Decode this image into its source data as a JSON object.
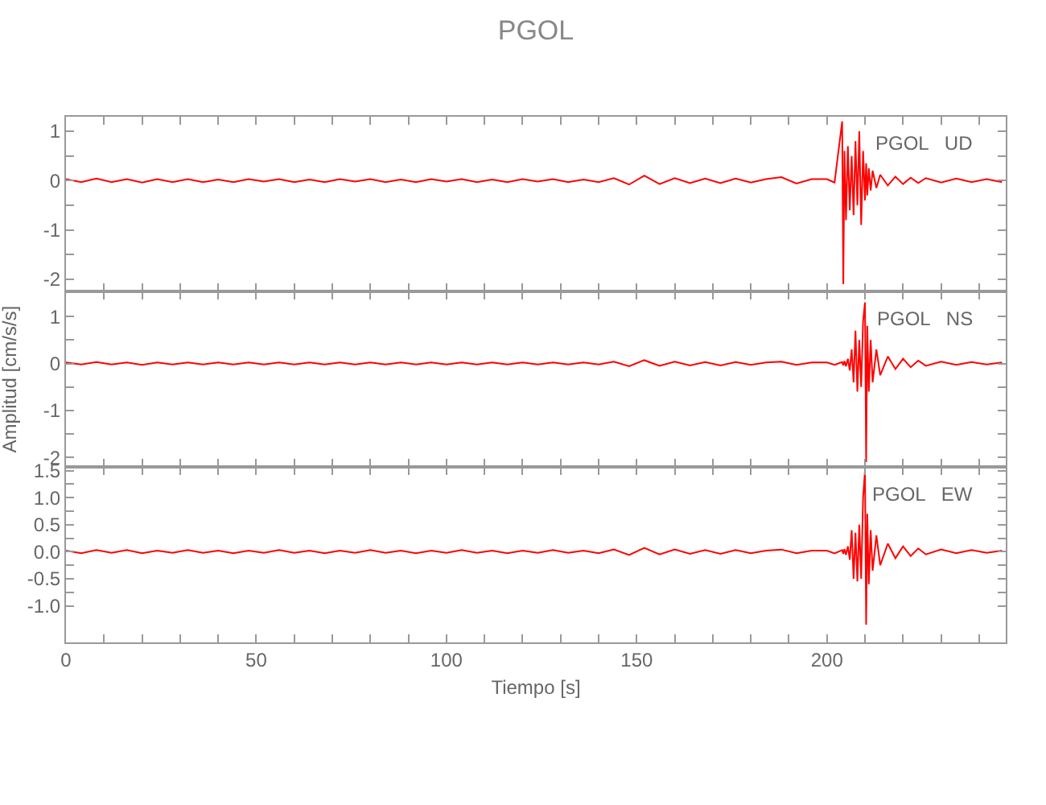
{
  "chart_data": [
    {
      "type": "line",
      "title": "PGOL",
      "annotations": [
        "PGOL   UD"
      ],
      "tick_labels": "y",
      "x": [
        0,
        4,
        8,
        12,
        16,
        20,
        24,
        28,
        32,
        36,
        40,
        44,
        48,
        52,
        56,
        60,
        64,
        68,
        72,
        76,
        80,
        84,
        88,
        92,
        96,
        100,
        104,
        108,
        112,
        116,
        120,
        124,
        128,
        132,
        136,
        140,
        144,
        148,
        152,
        156,
        160,
        164,
        168,
        172,
        176,
        180,
        184,
        188,
        192,
        196,
        200,
        202,
        204,
        204.3,
        204.6,
        205,
        205.5,
        206,
        206.5,
        207,
        207.5,
        208,
        208.5,
        209,
        209.5,
        210,
        210.3,
        210.6,
        211,
        211.5,
        212,
        213,
        214,
        216,
        218,
        220,
        222,
        224,
        226,
        230,
        234,
        238,
        242,
        246
      ],
      "series": [
        {
          "color": "#ff0000",
          "values": [
            0.03,
            -0.03,
            0.04,
            -0.03,
            0.03,
            -0.04,
            0.03,
            -0.03,
            0.03,
            -0.03,
            0.02,
            -0.03,
            0.03,
            -0.02,
            0.03,
            -0.03,
            0.02,
            -0.03,
            0.03,
            -0.02,
            0.03,
            -0.03,
            0.02,
            -0.03,
            0.03,
            -0.02,
            0.03,
            -0.03,
            0.02,
            -0.03,
            0.03,
            -0.02,
            0.03,
            -0.03,
            0.02,
            -0.03,
            0.05,
            -0.08,
            0.1,
            -0.07,
            0.05,
            -0.05,
            0.04,
            -0.05,
            0.04,
            -0.04,
            0.03,
            0.07,
            -0.06,
            0.03,
            0.03,
            -0.04,
            1.2,
            -2.1,
            0.6,
            -0.8,
            0.7,
            -0.6,
            0.5,
            -0.7,
            0.8,
            -0.5,
            1.0,
            -0.9,
            0.6,
            -0.4,
            0.35,
            -0.3,
            0.25,
            -0.2,
            0.2,
            -0.15,
            0.12,
            -0.1,
            0.08,
            -0.07,
            0.06,
            -0.05,
            0.05,
            -0.04,
            0.04,
            -0.03,
            0.03,
            -0.03
          ]
        }
      ],
      "xlim": [
        0,
        247
      ],
      "ylim": [
        -2.25,
        1.3
      ],
      "xticks": [
        0,
        {
          "value": 10,
          "label": null
        },
        {
          "value": 20,
          "label": null
        },
        {
          "value": 30,
          "label": null
        },
        {
          "value": 40,
          "label": null
        },
        50,
        {
          "value": 60,
          "label": null
        },
        {
          "value": 70,
          "label": null
        },
        {
          "value": 80,
          "label": null
        },
        {
          "value": 90,
          "label": null
        },
        100,
        {
          "value": 110,
          "label": null
        },
        {
          "value": 120,
          "label": null
        },
        {
          "value": 130,
          "label": null
        },
        {
          "value": 140,
          "label": null
        },
        150,
        {
          "value": 160,
          "label": null
        },
        {
          "value": 170,
          "label": null
        },
        {
          "value": 180,
          "label": null
        },
        {
          "value": 190,
          "label": null
        },
        200,
        {
          "value": 210,
          "label": null
        },
        {
          "value": 220,
          "label": null
        },
        {
          "value": 230,
          "label": null
        },
        {
          "value": 240,
          "label": null
        }
      ],
      "yticks": [
        -2,
        {
          "value": -1.5,
          "label": null
        },
        -1,
        {
          "value": -0.5,
          "label": null
        },
        0,
        {
          "value": 0.5,
          "label": null
        },
        1
      ]
    },
    {
      "type": "line",
      "ylabel": "Amplitud [cm/s/s]",
      "annotations": [
        "PGOL   NS"
      ],
      "tick_labels": "y",
      "x": [
        0,
        4,
        8,
        12,
        16,
        20,
        24,
        28,
        32,
        36,
        40,
        44,
        48,
        52,
        56,
        60,
        64,
        68,
        72,
        76,
        80,
        84,
        88,
        92,
        96,
        100,
        104,
        108,
        112,
        116,
        120,
        124,
        128,
        132,
        136,
        140,
        144,
        148,
        152,
        156,
        160,
        164,
        168,
        172,
        176,
        180,
        184,
        188,
        192,
        196,
        200,
        202,
        204,
        204.3,
        204.6,
        205,
        205.5,
        206,
        206.5,
        207,
        207.5,
        208,
        208.5,
        209,
        209.5,
        210,
        210.3,
        210.6,
        211,
        211.5,
        212,
        213,
        214,
        216,
        218,
        220,
        222,
        224,
        226,
        230,
        234,
        238,
        242,
        246
      ],
      "series": [
        {
          "color": "#ff0000",
          "values": [
            0.02,
            -0.02,
            0.03,
            -0.02,
            0.02,
            -0.03,
            0.02,
            -0.02,
            0.02,
            -0.02,
            0.02,
            -0.02,
            0.02,
            -0.02,
            0.02,
            -0.02,
            0.02,
            -0.02,
            0.02,
            -0.02,
            0.02,
            -0.02,
            0.02,
            -0.02,
            0.02,
            -0.02,
            0.02,
            -0.02,
            0.02,
            -0.02,
            0.02,
            -0.02,
            0.02,
            -0.02,
            0.02,
            -0.02,
            0.04,
            -0.06,
            0.07,
            -0.05,
            0.04,
            -0.04,
            0.03,
            -0.04,
            0.03,
            -0.03,
            0.02,
            0.04,
            -0.03,
            0.02,
            0.02,
            -0.03,
            0.03,
            -0.04,
            0.05,
            -0.06,
            0.1,
            -0.15,
            0.3,
            -0.4,
            0.7,
            -0.6,
            0.5,
            -0.5,
            0.9,
            1.3,
            -2.1,
            0.8,
            -0.6,
            0.5,
            -0.4,
            0.3,
            -0.25,
            0.15,
            -0.12,
            0.1,
            -0.08,
            0.06,
            -0.05,
            0.04,
            -0.03,
            0.03,
            -0.02,
            0.02
          ]
        }
      ],
      "xlim": [
        0,
        247
      ],
      "ylim": [
        -2.2,
        1.53
      ],
      "xticks": [
        0,
        {
          "value": 10,
          "label": null
        },
        {
          "value": 20,
          "label": null
        },
        {
          "value": 30,
          "label": null
        },
        {
          "value": 40,
          "label": null
        },
        50,
        {
          "value": 60,
          "label": null
        },
        {
          "value": 70,
          "label": null
        },
        {
          "value": 80,
          "label": null
        },
        {
          "value": 90,
          "label": null
        },
        100,
        {
          "value": 110,
          "label": null
        },
        {
          "value": 120,
          "label": null
        },
        {
          "value": 130,
          "label": null
        },
        {
          "value": 140,
          "label": null
        },
        150,
        {
          "value": 160,
          "label": null
        },
        {
          "value": 170,
          "label": null
        },
        {
          "value": 180,
          "label": null
        },
        {
          "value": 190,
          "label": null
        },
        200,
        {
          "value": 210,
          "label": null
        },
        {
          "value": 220,
          "label": null
        },
        {
          "value": 230,
          "label": null
        },
        {
          "value": 240,
          "label": null
        }
      ],
      "yticks": [
        -2,
        {
          "value": -1.5,
          "label": null
        },
        -1,
        {
          "value": -0.5,
          "label": null
        },
        0,
        {
          "value": 0.5,
          "label": null
        },
        1
      ]
    },
    {
      "type": "line",
      "xlabel": "Tiempo [s]",
      "annotations": [
        "PGOL   EW"
      ],
      "x": [
        0,
        4,
        8,
        12,
        16,
        20,
        24,
        28,
        32,
        36,
        40,
        44,
        48,
        52,
        56,
        60,
        64,
        68,
        72,
        76,
        80,
        84,
        88,
        92,
        96,
        100,
        104,
        108,
        112,
        116,
        120,
        124,
        128,
        132,
        136,
        140,
        144,
        148,
        152,
        156,
        160,
        164,
        168,
        172,
        176,
        180,
        184,
        188,
        192,
        196,
        200,
        202,
        204,
        204.3,
        204.6,
        205,
        205.5,
        206,
        206.5,
        207,
        207.5,
        208,
        208.5,
        209,
        209.5,
        210,
        210.3,
        210.6,
        211,
        211.5,
        212,
        213,
        214,
        216,
        218,
        220,
        222,
        224,
        226,
        230,
        234,
        238,
        242,
        246
      ],
      "series": [
        {
          "color": "#ff0000",
          "values": [
            0.02,
            -0.03,
            0.03,
            -0.02,
            0.03,
            -0.03,
            0.02,
            -0.02,
            0.03,
            -0.02,
            0.02,
            -0.03,
            0.02,
            -0.02,
            0.03,
            -0.02,
            0.02,
            -0.03,
            0.02,
            -0.02,
            0.03,
            -0.02,
            0.02,
            -0.03,
            0.02,
            -0.02,
            0.03,
            -0.02,
            0.02,
            -0.03,
            0.02,
            -0.02,
            0.03,
            -0.02,
            0.02,
            -0.03,
            0.04,
            -0.06,
            0.07,
            -0.05,
            0.04,
            -0.04,
            0.03,
            -0.04,
            0.03,
            -0.03,
            0.02,
            0.04,
            -0.03,
            0.02,
            0.02,
            -0.03,
            0.03,
            -0.04,
            0.05,
            -0.06,
            0.1,
            -0.15,
            0.4,
            -0.5,
            0.35,
            -0.55,
            0.5,
            -0.5,
            1.0,
            1.5,
            -1.35,
            0.7,
            -0.6,
            0.4,
            -0.35,
            0.3,
            -0.25,
            0.15,
            -0.12,
            0.1,
            -0.08,
            0.06,
            -0.05,
            0.04,
            -0.03,
            0.03,
            -0.02,
            0.02
          ]
        }
      ],
      "xlim": [
        0,
        247
      ],
      "ylim": [
        -1.67,
        1.57
      ],
      "xticks": [
        0,
        {
          "value": 10,
          "label": null
        },
        {
          "value": 20,
          "label": null
        },
        {
          "value": 30,
          "label": null
        },
        {
          "value": 40,
          "label": null
        },
        50,
        {
          "value": 60,
          "label": null
        },
        {
          "value": 70,
          "label": null
        },
        {
          "value": 80,
          "label": null
        },
        {
          "value": 90,
          "label": null
        },
        100,
        {
          "value": 110,
          "label": null
        },
        {
          "value": 120,
          "label": null
        },
        {
          "value": 130,
          "label": null
        },
        {
          "value": 140,
          "label": null
        },
        150,
        {
          "value": 160,
          "label": null
        },
        {
          "value": 170,
          "label": null
        },
        {
          "value": 180,
          "label": null
        },
        {
          "value": 190,
          "label": null
        },
        200,
        {
          "value": 210,
          "label": null
        },
        {
          "value": 220,
          "label": null
        },
        {
          "value": 230,
          "label": null
        },
        {
          "value": 240,
          "label": null
        }
      ],
      "yticks": [
        {
          "value": -1.0,
          "label": "-1.0"
        },
        {
          "value": -0.75,
          "label": null
        },
        {
          "value": -0.5,
          "label": "-0.5"
        },
        {
          "value": -0.25,
          "label": null
        },
        {
          "value": 0,
          "label": "0.0"
        },
        {
          "value": 0.25,
          "label": null
        },
        {
          "value": 0.5,
          "label": "0.5"
        },
        {
          "value": 0.75,
          "label": null
        },
        {
          "value": 1.0,
          "label": "1.0"
        },
        {
          "value": 1.25,
          "label": null
        },
        {
          "value": 1.5,
          "label": "1.5"
        }
      ]
    }
  ]
}
